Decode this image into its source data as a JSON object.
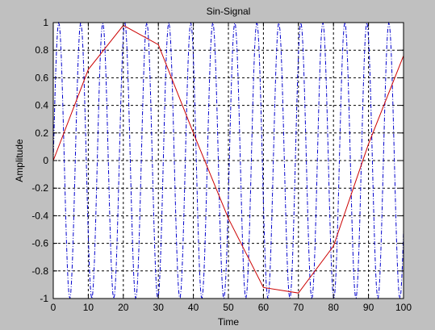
{
  "chart_data": {
    "type": "line",
    "title": "Sin-Signal",
    "xlabel": "Time",
    "ylabel": "Amplitude",
    "xlim": [
      0,
      100
    ],
    "ylim": [
      -1,
      1
    ],
    "xticks": [
      0,
      10,
      20,
      30,
      40,
      50,
      60,
      70,
      80,
      90,
      100
    ],
    "yticks": [
      -1,
      -0.8,
      -0.6,
      -0.4,
      -0.2,
      0,
      0.2,
      0.4,
      0.6,
      0.8,
      1
    ],
    "grid": true,
    "grid_style": "dashed",
    "series": [
      {
        "style": "dash-dot",
        "color": "#0000cc",
        "function": "sin",
        "x_start": 0,
        "x_end": 100,
        "x_step": 0.25
      },
      {
        "style": "solid",
        "color": "#cc0000",
        "x": [
          0,
          10,
          20,
          30,
          40,
          50,
          60,
          70,
          80,
          90,
          100
        ],
        "y": [
          0,
          0.66,
          0.98,
          0.84,
          0.2,
          -0.42,
          -0.92,
          -0.96,
          -0.62,
          0.12,
          0.76
        ]
      }
    ]
  },
  "colors": {
    "figure_background": "#c0c0c0",
    "axes_background": "#ffffff",
    "axes_border": "#000000",
    "grid": "#000000"
  }
}
